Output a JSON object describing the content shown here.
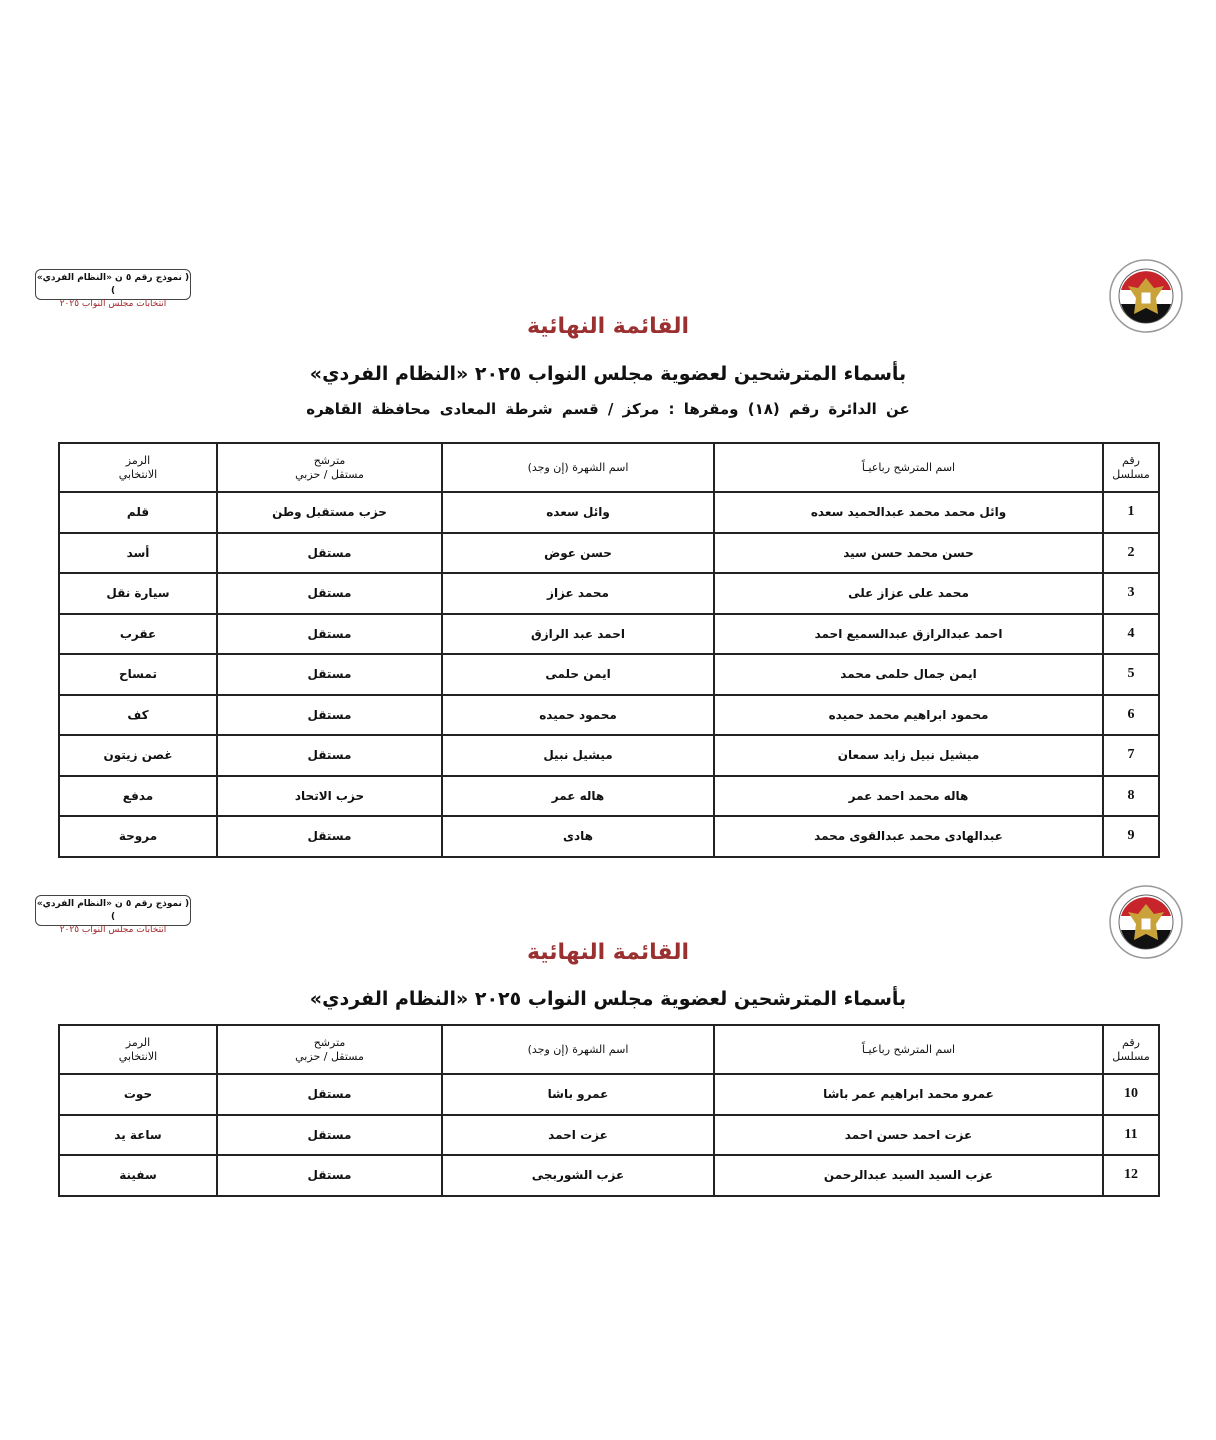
{
  "form_badge": {
    "line1": "( نموذج رقم ٥ ن «النظام الفردي» )",
    "line2": "انتخابات مجلس النواب ٢٠٢٥"
  },
  "colors": {
    "title": "#9b3030",
    "badge_line2": "#a1262a",
    "border": "#222222"
  },
  "logo": "national-election-authority-seal",
  "page1": {
    "title": "القائمة النهائية",
    "subtitle": "بأسماء المترشحين لعضوية مجلس النواب ٢٠٢٥ «النظام الفردي»",
    "district": "عن الدائرة رقم  (١٨)   ومقرها : مركز / قسم شرطة  المعادى   محافظة  القاهره"
  },
  "page2": {
    "title": "القائمة النهائية",
    "subtitle": "بأسماء المترشحين لعضوية مجلس النواب ٢٠٢٥ «النظام الفردي»"
  },
  "table_headers": {
    "serial": [
      "رقم",
      "مسلسل"
    ],
    "full_name": "اسم المترشح رباعيـاً",
    "known_as": "اسم الشهرة (إن وجد)",
    "type": [
      "مترشح",
      "مستقل / حزبي"
    ],
    "symbol": [
      "الرمز",
      "الانتخابي"
    ]
  },
  "table1_rows": [
    {
      "serial": "1",
      "full_name": "وائل محمد محمد عبدالحميد سعده",
      "known_as": "وائل سعده",
      "type": "حزب مستقبل وطن",
      "symbol": "قلم"
    },
    {
      "serial": "2",
      "full_name": "حسن محمد حسن سيد",
      "known_as": "حسن عوض",
      "type": "مستقل",
      "symbol": "أسد"
    },
    {
      "serial": "3",
      "full_name": "محمد على عزاز على",
      "known_as": "محمد عزاز",
      "type": "مستقل",
      "symbol": "سيارة نقل"
    },
    {
      "serial": "4",
      "full_name": "احمد عبدالرازق عبدالسميع احمد",
      "known_as": "احمد عبد الرازق",
      "type": "مستقل",
      "symbol": "عقرب"
    },
    {
      "serial": "5",
      "full_name": "ايمن جمال حلمى محمد",
      "known_as": "ايمن حلمى",
      "type": "مستقل",
      "symbol": "تمساح"
    },
    {
      "serial": "6",
      "full_name": "محمود ابراهيم محمد حميده",
      "known_as": "محمود حميده",
      "type": "مستقل",
      "symbol": "كف"
    },
    {
      "serial": "7",
      "full_name": "ميشيل نبيل زايد سمعان",
      "known_as": "ميشيل نبيل",
      "type": "مستقل",
      "symbol": "غصن زيتون"
    },
    {
      "serial": "8",
      "full_name": "هاله محمد احمد عمر",
      "known_as": "هاله عمر",
      "type": "حزب الاتحاد",
      "symbol": "مدفع"
    },
    {
      "serial": "9",
      "full_name": "عبدالهادى محمد عبدالقوى محمد",
      "known_as": "هادى",
      "type": "مستقل",
      "symbol": "مروحة"
    }
  ],
  "table2_rows": [
    {
      "serial": "10",
      "full_name": "عمرو محمد ابراهيم عمر باشا",
      "known_as": "عمرو باشا",
      "type": "مستقل",
      "symbol": "حوت"
    },
    {
      "serial": "11",
      "full_name": "عزت احمد حسن احمد",
      "known_as": "عزت احمد",
      "type": "مستقل",
      "symbol": "ساعة يد"
    },
    {
      "serial": "12",
      "full_name": "عزب السيد السيد عبدالرحمن",
      "known_as": "عزب الشوربجى",
      "type": "مستقل",
      "symbol": "سفينة"
    }
  ]
}
